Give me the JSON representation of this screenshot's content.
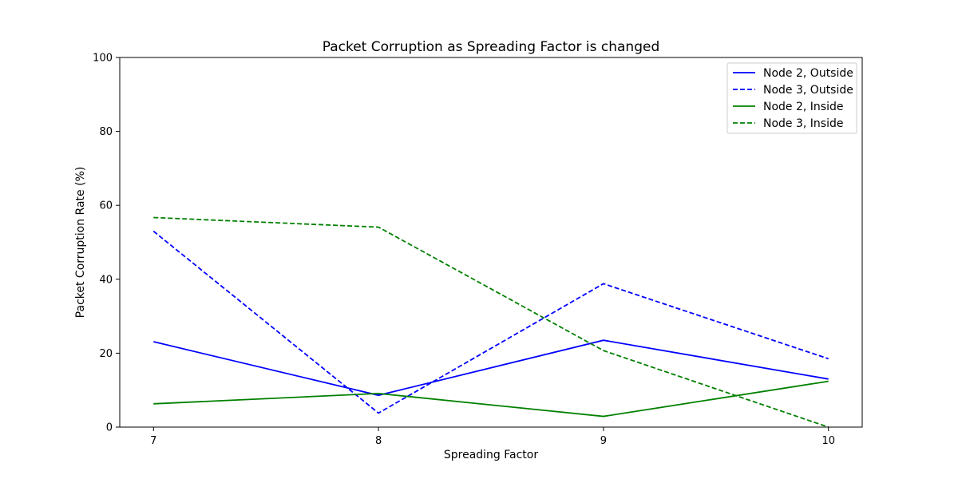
{
  "chart_data": {
    "type": "line",
    "title": "Packet Corruption as Spreading Factor is changed",
    "xlabel": "Spreading Factor",
    "ylabel": "Packet Corruption Rate (%)",
    "x": [
      7,
      8,
      9,
      10
    ],
    "xlim": [
      6.85,
      10.15
    ],
    "ylim": [
      0,
      100
    ],
    "xticks": [
      "7",
      "8",
      "9",
      "10"
    ],
    "yticks": [
      "0",
      "20",
      "40",
      "60",
      "80",
      "100"
    ],
    "legend_position": "top-right",
    "grid": false,
    "series": [
      {
        "name": "Node 2, Outside",
        "color": "#0000ff",
        "dash": false,
        "values": [
          23.1,
          8.6,
          23.5,
          13.0
        ]
      },
      {
        "name": "Node 3, Outside",
        "color": "#0000ff",
        "dash": true,
        "values": [
          53.0,
          3.8,
          38.8,
          18.5
        ]
      },
      {
        "name": "Node 2, Inside",
        "color": "#008000",
        "dash": false,
        "values": [
          6.3,
          9.1,
          2.9,
          12.4
        ]
      },
      {
        "name": "Node 3, Inside",
        "color": "#008000",
        "dash": true,
        "values": [
          56.7,
          54.1,
          20.7,
          0.0
        ]
      }
    ]
  }
}
